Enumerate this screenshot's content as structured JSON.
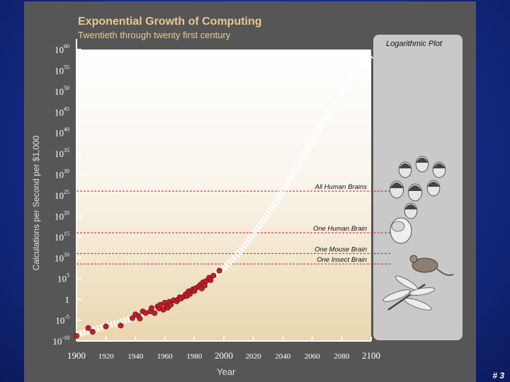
{
  "slide": {
    "page_number": "# 3",
    "colors": {
      "background": "#142a86",
      "panel": "#565656",
      "title": "#e9c98d",
      "datapoint": "#c0202a",
      "marker_line": "#c0202a"
    }
  },
  "chart_data": {
    "type": "scatter",
    "title": "Exponential Growth of Computing",
    "subtitle": "Twentieth through twenty first century",
    "xlabel": "Year",
    "ylabel": "Calculations per Second per $1,000",
    "panel_label": "Logarithmic Plot",
    "y_scale": "log",
    "xlim": [
      1900,
      2100
    ],
    "ylim_exponent": [
      -10,
      60
    ],
    "x_ticks": [
      1900,
      1920,
      1940,
      1960,
      1980,
      2000,
      2020,
      2040,
      2060,
      2080,
      2100
    ],
    "y_ticks": [
      {
        "exp": 60,
        "base": "10",
        "sup": "60"
      },
      {
        "exp": 55,
        "base": "10",
        "sup": "55"
      },
      {
        "exp": 50,
        "base": "10",
        "sup": "50"
      },
      {
        "exp": 45,
        "base": "10",
        "sup": "45"
      },
      {
        "exp": 40,
        "base": "10",
        "sup": "40"
      },
      {
        "exp": 35,
        "base": "10",
        "sup": "35"
      },
      {
        "exp": 30,
        "base": "10",
        "sup": "30"
      },
      {
        "exp": 25,
        "base": "10",
        "sup": "25"
      },
      {
        "exp": 20,
        "base": "10",
        "sup": "20"
      },
      {
        "exp": 15,
        "base": "10",
        "sup": "15"
      },
      {
        "exp": 10,
        "base": "10",
        "sup": "10"
      },
      {
        "exp": 5,
        "base": "10",
        "sup": "5"
      },
      {
        "exp": 0,
        "base": "1",
        "sup": ""
      },
      {
        "exp": -5,
        "base": "10",
        "sup": "-5"
      },
      {
        "exp": -10,
        "base": "10",
        "sup": "-10"
      }
    ],
    "thresholds": [
      {
        "label": "All Human Brains",
        "exp": 26
      },
      {
        "label": "One Human Brain",
        "exp": 16
      },
      {
        "label": "One Mouse Brain",
        "exp": 11
      },
      {
        "label": "One Insect Brain",
        "exp": 8.5
      }
    ],
    "series": [
      {
        "points": [
          [
            1900,
            -8.8
          ],
          [
            1908,
            -6.9
          ],
          [
            1911,
            -7.8
          ],
          [
            1920,
            -6.5
          ],
          [
            1930,
            -6.3
          ],
          [
            1938,
            -4.5
          ],
          [
            1940,
            -3.6
          ],
          [
            1942,
            -4.0
          ],
          [
            1943,
            -4.6
          ],
          [
            1945,
            -2.9
          ],
          [
            1947,
            -3.3
          ],
          [
            1950,
            -2.9
          ],
          [
            1951,
            -2.1
          ],
          [
            1953,
            -3.3
          ],
          [
            1955,
            -1.7
          ],
          [
            1956,
            -2.2
          ],
          [
            1957,
            -1.3
          ],
          [
            1959,
            -2.5
          ],
          [
            1960,
            -0.8
          ],
          [
            1961,
            -1.7
          ],
          [
            1962,
            -2.0
          ],
          [
            1963,
            -0.6
          ],
          [
            1964,
            -1.3
          ],
          [
            1966,
            -0.2
          ],
          [
            1968,
            -0.5
          ],
          [
            1969,
            0.0
          ],
          [
            1970,
            0.5
          ],
          [
            1971,
            0.2
          ],
          [
            1973,
            0.7
          ],
          [
            1974,
            1.2
          ],
          [
            1975,
            0.8
          ],
          [
            1976,
            1.9
          ],
          [
            1977,
            1.3
          ],
          [
            1978,
            2.1
          ],
          [
            1979,
            2.4
          ],
          [
            1980,
            2.0
          ],
          [
            1981,
            2.7
          ],
          [
            1983,
            3.1
          ],
          [
            1984,
            3.5
          ],
          [
            1985,
            2.6
          ],
          [
            1986,
            4.1
          ],
          [
            1987,
            3.3
          ],
          [
            1988,
            4.4
          ],
          [
            1990,
            5.2
          ],
          [
            1991,
            4.6
          ],
          [
            1993,
            5.7
          ],
          [
            1997,
            6.9
          ]
        ]
      },
      {
        "points": [
          [
            1900,
            -8.5
          ],
          [
            1910,
            -7.5
          ],
          [
            1920,
            -6.4
          ],
          [
            1930,
            -5.4
          ],
          [
            1940,
            -4.2
          ],
          [
            1950,
            -2.9
          ],
          [
            1960,
            -1.4
          ],
          [
            1970,
            0.3
          ],
          [
            1980,
            2.3
          ],
          [
            1990,
            4.6
          ],
          [
            2000,
            7.5
          ],
          [
            2010,
            11.0
          ],
          [
            2020,
            15.5
          ],
          [
            2030,
            20.5
          ],
          [
            2040,
            26.0
          ],
          [
            2050,
            32.0
          ],
          [
            2060,
            38.0
          ],
          [
            2070,
            44.0
          ],
          [
            2080,
            49.5
          ],
          [
            2090,
            54.5
          ],
          [
            2100,
            58.5
          ]
        ]
      }
    ]
  }
}
